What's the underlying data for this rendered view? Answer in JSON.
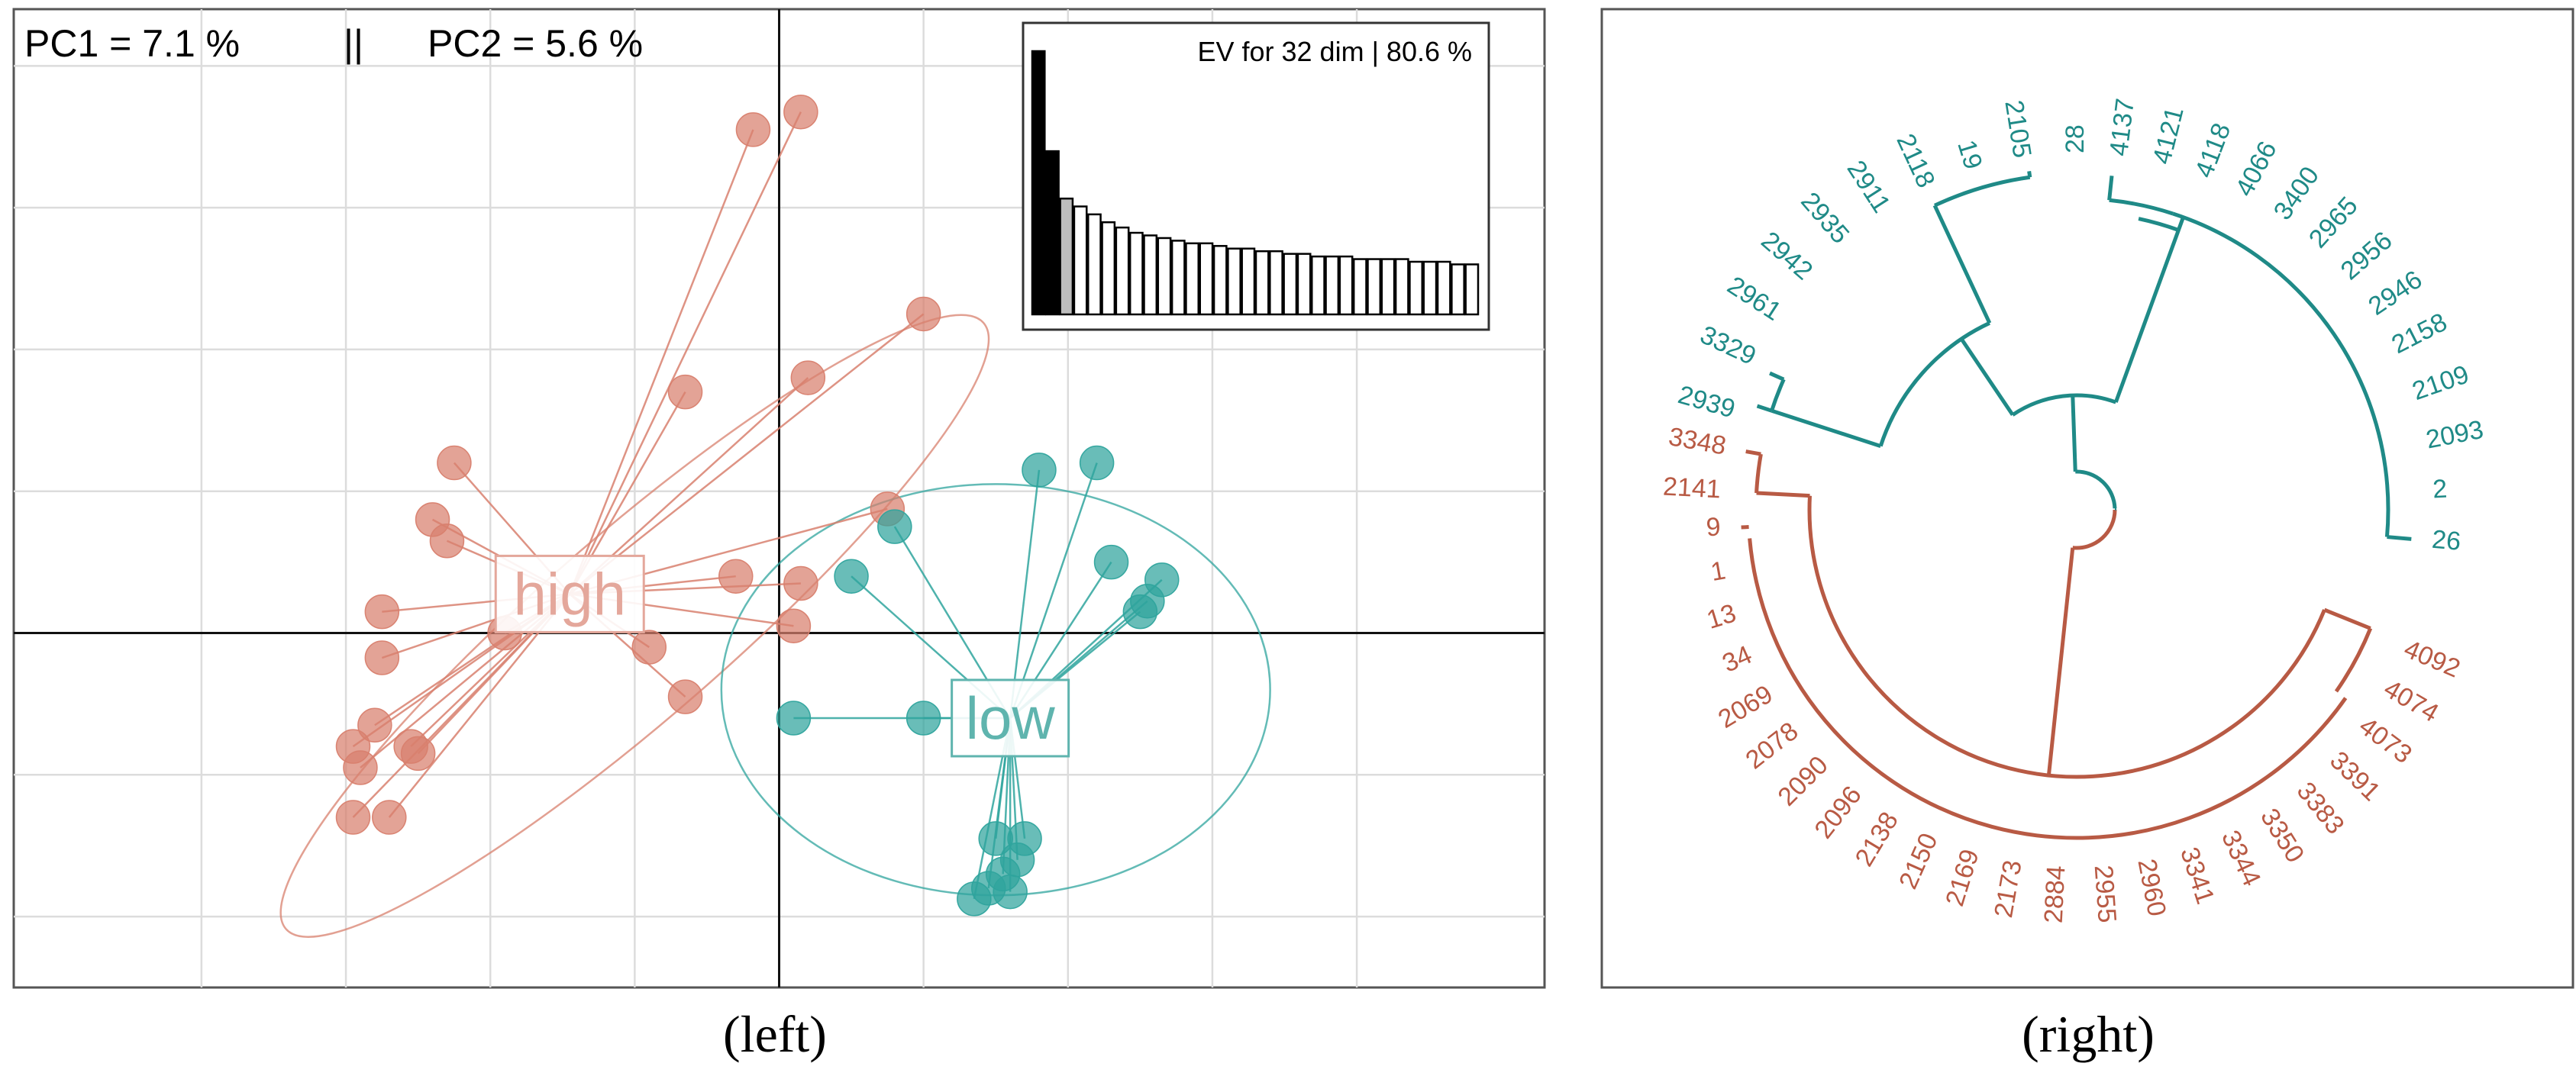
{
  "chart_data": [
    {
      "type": "scatter",
      "panel": "left",
      "caption": "(left)",
      "header": {
        "pc1": "PC1 = 7.1 %",
        "separator": "||",
        "pc2": "PC2 = 5.6 %"
      },
      "eigen_inset": {
        "label": "EV for 32 dim | 80.6 %",
        "bar_values": [
          1.0,
          0.62,
          0.44,
          0.41,
          0.38,
          0.35,
          0.33,
          0.31,
          0.3,
          0.29,
          0.28,
          0.27,
          0.27,
          0.26,
          0.25,
          0.25,
          0.24,
          0.24,
          0.23,
          0.23,
          0.22,
          0.22,
          0.22,
          0.21,
          0.21,
          0.21,
          0.21,
          0.2,
          0.2,
          0.2,
          0.19,
          0.19
        ],
        "highlighted_bars": 2
      },
      "groups": [
        {
          "name": "high",
          "color": "#D8806E",
          "label_color": "#E4A79B",
          "centroid": [
            -1.45,
            0.55
          ],
          "ellipse": {
            "cx": -1.0,
            "cy": 0.1,
            "rx": 3.2,
            "ry": 1.3,
            "angle_deg": -41
          },
          "points": [
            [
              0.15,
              7.35
            ],
            [
              -0.18,
              7.1
            ],
            [
              1.0,
              4.5
            ],
            [
              0.2,
              3.6
            ],
            [
              -0.65,
              3.4
            ],
            [
              -2.25,
              2.4
            ],
            [
              -2.4,
              1.6
            ],
            [
              -2.3,
              1.3
            ],
            [
              0.75,
              1.75
            ],
            [
              -0.3,
              0.8
            ],
            [
              0.15,
              0.7
            ],
            [
              -2.75,
              0.3
            ],
            [
              -1.9,
              0.0
            ],
            [
              -0.9,
              -0.2
            ],
            [
              0.1,
              0.1
            ],
            [
              -2.75,
              -0.35
            ],
            [
              -0.65,
              -0.9
            ],
            [
              -2.8,
              -1.3
            ],
            [
              -2.55,
              -1.6
            ],
            [
              -2.95,
              -1.6
            ],
            [
              -2.9,
              -1.9
            ],
            [
              -2.5,
              -1.7
            ],
            [
              -2.7,
              -2.6
            ],
            [
              -2.95,
              -2.6
            ]
          ]
        },
        {
          "name": "low",
          "color": "#2FA49D",
          "label_color": "#5FB4AE",
          "centroid": [
            1.6,
            -1.2
          ],
          "ellipse": {
            "cx": 1.5,
            "cy": -0.8,
            "rx": 1.9,
            "ry": 2.9,
            "angle_deg": 0
          },
          "points": [
            [
              1.8,
              2.3
            ],
            [
              2.2,
              2.4
            ],
            [
              0.8,
              1.5
            ],
            [
              2.3,
              1.0
            ],
            [
              0.5,
              0.8
            ],
            [
              2.65,
              0.75
            ],
            [
              2.55,
              0.45
            ],
            [
              2.5,
              0.3
            ],
            [
              0.1,
              -1.2
            ],
            [
              1.0,
              -1.2
            ],
            [
              1.5,
              -2.9
            ],
            [
              1.7,
              -2.9
            ],
            [
              1.65,
              -3.2
            ],
            [
              1.55,
              -3.4
            ],
            [
              1.45,
              -3.6
            ],
            [
              1.6,
              -3.65
            ],
            [
              1.35,
              -3.75
            ]
          ]
        }
      ],
      "xlim": [
        -5.3,
        5.3
      ],
      "ylim": [
        -5.0,
        8.8
      ],
      "grid_x": [
        -4,
        -3,
        -2,
        -1,
        1,
        2,
        3,
        4
      ],
      "grid_y": [
        -4,
        -2,
        2,
        4,
        6,
        8
      ],
      "grid": true
    },
    {
      "type": "dendrogram",
      "panel": "right",
      "caption": "(right)",
      "layout": "circular",
      "clusters": [
        {
          "name": "teal",
          "color": "#1F8A87",
          "leaves": [
            "2939",
            "3329",
            "2961",
            "2942",
            "2935",
            "2911",
            "2118",
            "19",
            "2105",
            "28",
            "4137",
            "4121",
            "4118",
            "4066",
            "3400",
            "2965",
            "2956",
            "2946",
            "2158",
            "2109",
            "2093",
            "2",
            "26"
          ]
        },
        {
          "name": "red",
          "color": "#B85A44",
          "leaves": [
            "4092",
            "4074",
            "4073",
            "3391",
            "3383",
            "3350",
            "3344",
            "3341",
            "2960",
            "2955",
            "2884",
            "2173",
            "2169",
            "2150",
            "2138",
            "2096",
            "2090",
            "2078",
            "2069",
            "34",
            "13",
            "1",
            "9",
            "2141",
            "3348"
          ]
        }
      ]
    }
  ]
}
